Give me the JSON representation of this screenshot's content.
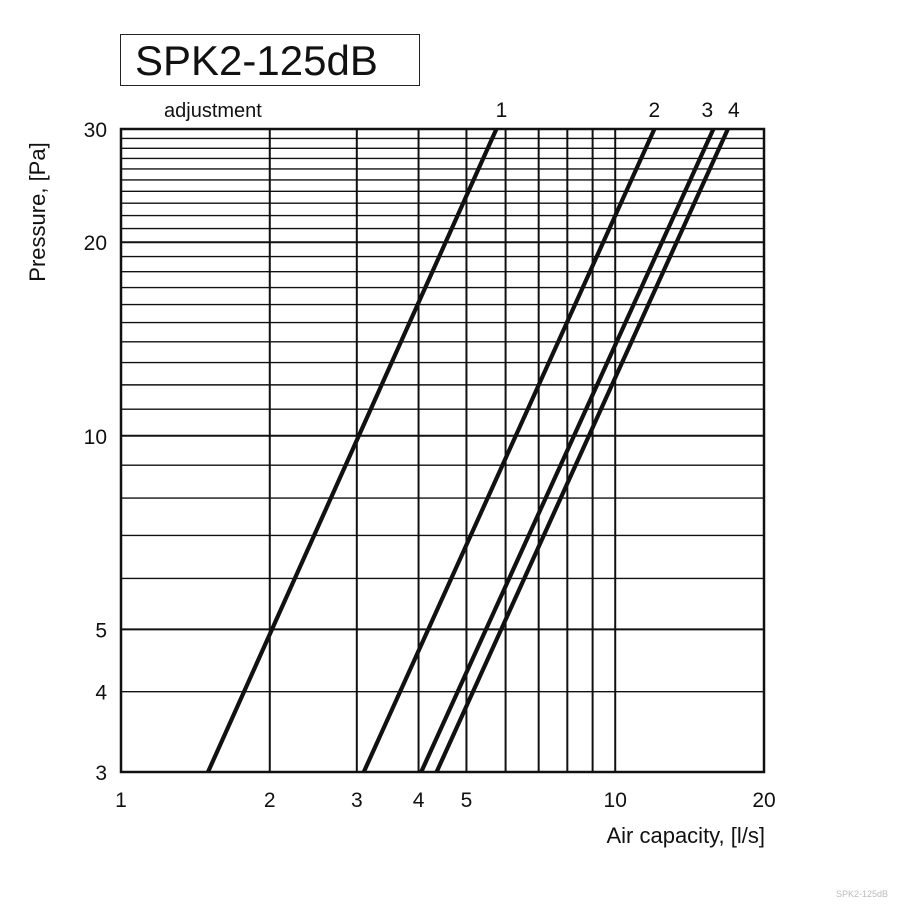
{
  "chart_data": {
    "type": "line",
    "title": "SPK2-125dB",
    "xlabel": "Air capacity, [l/s]",
    "ylabel": "Pressure, [Pa]",
    "xscale": "log",
    "yscale": "log",
    "xlim": [
      1,
      20
    ],
    "ylim": [
      3,
      30
    ],
    "x_ticks": [
      1,
      2,
      3,
      4,
      5,
      10,
      20
    ],
    "y_ticks": [
      3,
      4,
      5,
      10,
      20,
      30
    ],
    "grid": true,
    "annotation": "adjustment",
    "series": [
      {
        "name": "1",
        "x": [
          1.5,
          5.75
        ],
        "y": [
          3,
          30
        ]
      },
      {
        "name": "2",
        "x": [
          3.1,
          12.0
        ],
        "y": [
          3,
          30
        ]
      },
      {
        "name": "3",
        "x": [
          4.05,
          15.8
        ],
        "y": [
          3,
          30
        ]
      },
      {
        "name": "4",
        "x": [
          4.35,
          16.9
        ],
        "y": [
          3,
          30
        ]
      }
    ]
  },
  "watermark": "SPK2-125dB"
}
